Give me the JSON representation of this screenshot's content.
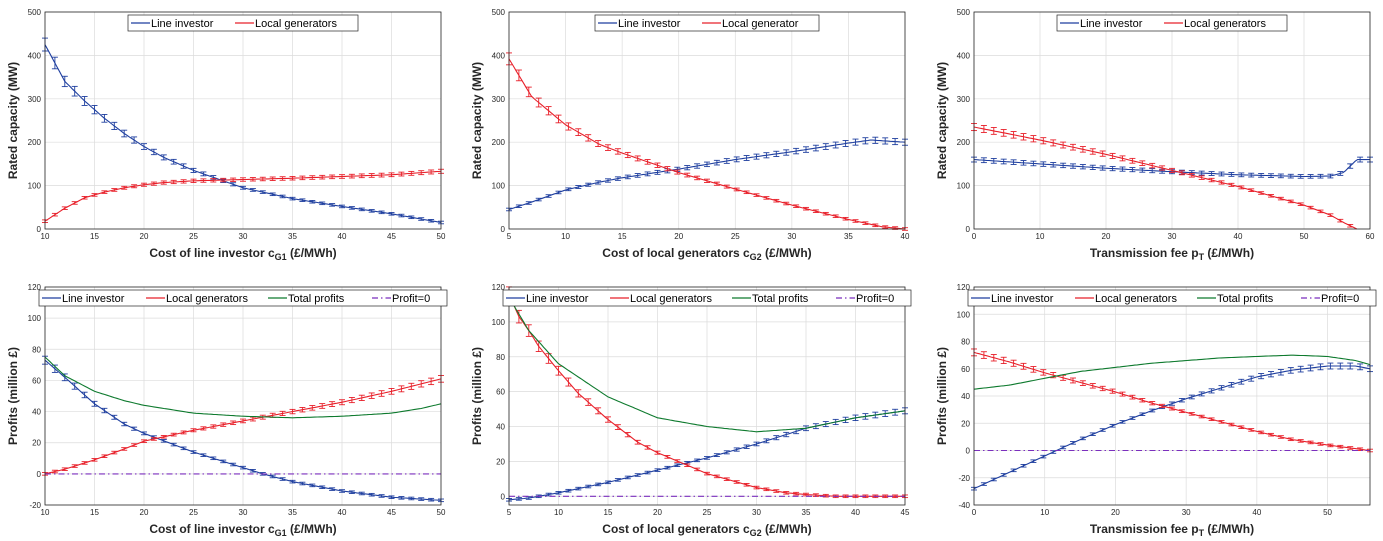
{
  "chart_data": [
    {
      "type": "line",
      "xlabel": "Cost of line investor c",
      "xlabel_sub": "G1",
      "xlabel_tail": " (£/MWh)",
      "ylabel": "Rated capacity (MW)",
      "xlim": [
        10,
        50
      ],
      "ylim": [
        0,
        500
      ],
      "xticks": [
        10,
        15,
        20,
        25,
        30,
        35,
        40,
        45,
        50
      ],
      "yticks": [
        0,
        100,
        200,
        300,
        400,
        500
      ],
      "grid": true,
      "legend_position": "top",
      "series": [
        {
          "name": "Line investor",
          "color": "#1f3f9f",
          "errorbars": true,
          "x": [
            10,
            12,
            14,
            16,
            18,
            20,
            22,
            25,
            30,
            35,
            40,
            45,
            50
          ],
          "y": [
            425,
            340,
            295,
            255,
            220,
            190,
            165,
            135,
            95,
            70,
            52,
            35,
            15
          ]
        },
        {
          "name": "Local generators",
          "color": "#e8202a",
          "errorbars": true,
          "x": [
            10,
            12,
            14,
            16,
            18,
            20,
            22,
            25,
            30,
            35,
            40,
            45,
            50
          ],
          "y": [
            18,
            48,
            72,
            85,
            95,
            102,
            107,
            111,
            114,
            117,
            121,
            125,
            133
          ]
        }
      ]
    },
    {
      "type": "line",
      "xlabel": "Cost of local generators c",
      "xlabel_sub": "G2",
      "xlabel_tail": " (£/MWh)",
      "ylabel": "Rated capacity (MW)",
      "xlim": [
        5,
        40
      ],
      "ylim": [
        0,
        500
      ],
      "xticks": [
        5,
        10,
        15,
        20,
        25,
        30,
        35,
        40
      ],
      "yticks": [
        0,
        100,
        200,
        300,
        400,
        500
      ],
      "grid": true,
      "legend_position": "top",
      "series": [
        {
          "name": "Line investor",
          "color": "#1f3f9f",
          "errorbars": true,
          "x": [
            5,
            7,
            10,
            13,
            15,
            18,
            20,
            25,
            30,
            35,
            37,
            40
          ],
          "y": [
            45,
            62,
            90,
            108,
            118,
            130,
            138,
            160,
            178,
            198,
            205,
            200
          ]
        },
        {
          "name": "Local generator",
          "color": "#e8202a",
          "errorbars": true,
          "x": [
            5,
            7,
            10,
            13,
            15,
            18,
            20,
            25,
            30,
            35,
            38,
            40
          ],
          "y": [
            392,
            305,
            240,
            195,
            175,
            148,
            130,
            92,
            55,
            22,
            5,
            0
          ]
        }
      ]
    },
    {
      "type": "line",
      "xlabel": "Transmission fee p",
      "xlabel_sub": "T",
      "xlabel_tail": " (£/MWh)",
      "ylabel": "Rated capacity (MW)",
      "xlim": [
        0,
        60
      ],
      "ylim": [
        0,
        500
      ],
      "xticks": [
        0,
        10,
        20,
        30,
        40,
        50,
        60
      ],
      "yticks": [
        0,
        100,
        200,
        300,
        400,
        500
      ],
      "grid": true,
      "legend_position": "top",
      "series": [
        {
          "name": "Line investor",
          "color": "#1f3f9f",
          "errorbars": true,
          "x": [
            0,
            10,
            20,
            30,
            40,
            50,
            54,
            56,
            58,
            60
          ],
          "y": [
            160,
            150,
            140,
            132,
            125,
            121,
            122,
            130,
            160,
            160
          ]
        },
        {
          "name": "Local generators",
          "color": "#e8202a",
          "errorbars": true,
          "x": [
            0,
            10,
            20,
            30,
            40,
            50,
            54,
            56,
            58
          ],
          "y": [
            235,
            205,
            172,
            135,
            98,
            55,
            32,
            15,
            0
          ]
        }
      ]
    },
    {
      "type": "line",
      "xlabel": "Cost of line investor c",
      "xlabel_sub": "G1",
      "xlabel_tail": " (£/MWh)",
      "ylabel": "Profits (million £)",
      "xlim": [
        10,
        50
      ],
      "ylim": [
        -20,
        120
      ],
      "xticks": [
        10,
        15,
        20,
        25,
        30,
        35,
        40,
        45,
        50
      ],
      "yticks": [
        -20,
        0,
        20,
        40,
        60,
        80,
        100,
        120
      ],
      "grid": true,
      "legend_position": "top",
      "series": [
        {
          "name": "Line investor",
          "color": "#1f3f9f",
          "errorbars": true,
          "x": [
            10,
            12,
            15,
            18,
            20,
            25,
            30,
            32,
            35,
            40,
            45,
            50
          ],
          "y": [
            73,
            62,
            45,
            32,
            26,
            14,
            4,
            0,
            -5,
            -11,
            -15,
            -17
          ]
        },
        {
          "name": "Local generators",
          "color": "#e8202a",
          "errorbars": true,
          "x": [
            10,
            12,
            15,
            18,
            20,
            25,
            30,
            35,
            40,
            45,
            50
          ],
          "y": [
            0,
            3,
            9,
            16,
            21,
            28,
            34,
            40,
            46,
            53,
            61
          ]
        },
        {
          "name": "Total profits",
          "color": "#0e7a2e",
          "errorbars": false,
          "x": [
            10,
            12,
            15,
            18,
            20,
            25,
            30,
            35,
            40,
            45,
            48,
            50
          ],
          "y": [
            75,
            63,
            53,
            47,
            44,
            39,
            37,
            36,
            37,
            39,
            42,
            45
          ]
        },
        {
          "name": "Profit=0",
          "color": "#7b2fbe",
          "errorbars": false,
          "dash": "6,3,1.5,3",
          "x": [
            10,
            50
          ],
          "y": [
            0,
            0
          ]
        }
      ]
    },
    {
      "type": "line",
      "xlabel": "Cost of local generators c",
      "xlabel_sub": "G2",
      "xlabel_tail": " (£/MWh)",
      "ylabel": "Profits (million £)",
      "xlim": [
        5,
        45
      ],
      "ylim": [
        -5,
        120
      ],
      "xticks": [
        5,
        10,
        15,
        20,
        25,
        30,
        35,
        40,
        45
      ],
      "yticks": [
        0,
        20,
        40,
        60,
        80,
        100,
        120
      ],
      "grid": true,
      "legend_position": "top",
      "series": [
        {
          "name": "Line investor",
          "color": "#1f3f9f",
          "errorbars": true,
          "x": [
            5,
            7,
            10,
            15,
            20,
            25,
            30,
            35,
            40,
            45
          ],
          "y": [
            -2,
            -1,
            2,
            8,
            15,
            22,
            30,
            39,
            45,
            49
          ]
        },
        {
          "name": "Local generators",
          "color": "#e8202a",
          "errorbars": true,
          "x": [
            5,
            6,
            7,
            8,
            10,
            12,
            15,
            18,
            20,
            25,
            30,
            33,
            35,
            38,
            40,
            45
          ],
          "y": [
            116,
            103,
            95,
            86,
            72,
            59,
            44,
            31,
            25,
            13,
            5,
            2,
            1,
            0,
            0,
            0
          ]
        },
        {
          "name": "Total profits",
          "color": "#0e7a2e",
          "errorbars": false,
          "x": [
            5,
            7,
            10,
            15,
            20,
            25,
            30,
            35,
            40,
            45
          ],
          "y": [
            114,
            95,
            76,
            57,
            45,
            40,
            37,
            39,
            45,
            49
          ]
        },
        {
          "name": "Profit=0",
          "color": "#7b2fbe",
          "errorbars": false,
          "dash": "6,3,1.5,3",
          "x": [
            5,
            45
          ],
          "y": [
            0,
            0
          ]
        }
      ]
    },
    {
      "type": "line",
      "xlabel": "Transmission fee p",
      "xlabel_sub": "T",
      "xlabel_tail": " (£/MWh)",
      "ylabel": "Profits (million £)",
      "xlim": [
        0,
        56
      ],
      "ylim": [
        -40,
        120
      ],
      "xticks": [
        0,
        10,
        20,
        30,
        40,
        50
      ],
      "yticks": [
        -40,
        -20,
        0,
        20,
        40,
        60,
        80,
        100,
        120
      ],
      "grid": true,
      "legend_position": "top",
      "series": [
        {
          "name": "Line investor",
          "color": "#1f3f9f",
          "errorbars": true,
          "x": [
            0,
            5,
            10,
            15,
            20,
            25,
            30,
            35,
            40,
            45,
            50,
            54,
            56
          ],
          "y": [
            -28,
            -16,
            -4,
            8,
            19,
            29,
            38,
            46,
            54,
            59,
            62,
            62,
            60
          ]
        },
        {
          "name": "Local generators",
          "color": "#e8202a",
          "errorbars": true,
          "x": [
            0,
            5,
            10,
            15,
            20,
            25,
            30,
            35,
            40,
            45,
            50,
            56
          ],
          "y": [
            72,
            65,
            57,
            50,
            43,
            35,
            28,
            21,
            14,
            8,
            4,
            0
          ]
        },
        {
          "name": "Total profits",
          "color": "#0e7a2e",
          "errorbars": false,
          "x": [
            0,
            5,
            10,
            15,
            20,
            25,
            30,
            35,
            40,
            45,
            50,
            54,
            56
          ],
          "y": [
            45,
            48,
            53,
            58,
            61,
            64,
            66,
            68,
            69,
            70,
            69,
            66,
            63
          ]
        },
        {
          "name": "Profit=0",
          "color": "#7b2fbe",
          "errorbars": false,
          "dash": "6,3,1.5,3",
          "x": [
            0,
            56
          ],
          "y": [
            0,
            0
          ]
        }
      ]
    }
  ]
}
